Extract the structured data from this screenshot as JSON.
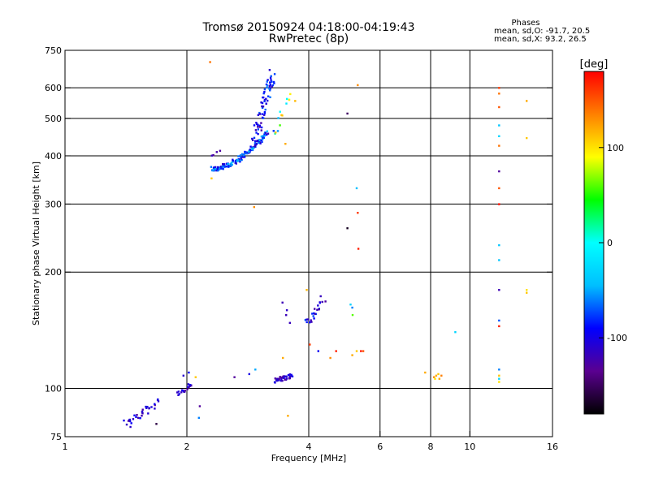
{
  "chart_data": {
    "type": "scatter",
    "title": "Tromsø 20150924 04:18:00-04:19:43",
    "subtitle": "RwPretec (8p)",
    "xlabel": "Frequency [MHz]",
    "ylabel": "Stationary phase Virtual Height [km]",
    "x_scale": "log",
    "y_scale": "log",
    "xlim": [
      1,
      16
    ],
    "ylim": [
      75,
      750
    ],
    "x_ticks": [
      1,
      2,
      4,
      6,
      8,
      10,
      16
    ],
    "y_ticks": [
      75,
      100,
      200,
      300,
      400,
      500,
      600,
      750
    ],
    "x_tick_labels": [
      "1",
      "2",
      "4",
      "6",
      "8",
      "10",
      "16"
    ],
    "y_tick_labels": [
      "75",
      "100",
      "200",
      "300",
      "400",
      "500",
      "600",
      "750"
    ],
    "grid": true,
    "stats": {
      "heading": "Phases",
      "o_line": "mean, sd,O: -91.7, 20.5",
      "x_line": "mean, sd,X:  93.2, 26.5"
    },
    "colorbar": {
      "label": "[deg]",
      "range": [
        -180,
        180
      ],
      "ticks": [
        -100,
        0,
        100
      ],
      "tick_labels": [
        "-100",
        "0",
        "100"
      ],
      "stops": [
        "#000000",
        "#5a0090",
        "#0000ff",
        "#00bfff",
        "#00ffff",
        "#00ff00",
        "#ffff00",
        "#ff8000",
        "#ff0000"
      ]
    },
    "points": [
      [
        2.28,
        700,
        140
      ],
      [
        2.93,
        295,
        130
      ],
      [
        2.3,
        350,
        110
      ],
      [
        3.5,
        430,
        120
      ],
      [
        3.55,
        85,
        120
      ],
      [
        5.28,
        610,
        130
      ],
      [
        3.7,
        555,
        115
      ],
      [
        4.98,
        515,
        -150
      ],
      [
        5.25,
        330,
        -45
      ],
      [
        5.28,
        285,
        160
      ],
      [
        5.3,
        230,
        170
      ],
      [
        4.98,
        260,
        -170
      ],
      [
        3.95,
        180,
        115
      ],
      [
        4.02,
        130,
        160
      ],
      [
        4.22,
        125,
        -95
      ],
      [
        4.52,
        120,
        130
      ],
      [
        4.67,
        125,
        170
      ],
      [
        5.12,
        122,
        120
      ],
      [
        5.25,
        125,
        110
      ],
      [
        5.38,
        125,
        175
      ],
      [
        5.45,
        125,
        150
      ],
      [
        5.13,
        155,
        60
      ],
      [
        5.07,
        165,
        -30
      ],
      [
        5.12,
        162,
        -60
      ],
      [
        3.45,
        120,
        120
      ],
      [
        2.95,
        112,
        -50
      ],
      [
        2.85,
        109,
        -100
      ],
      [
        2.62,
        107,
        -130
      ],
      [
        1.96,
        108,
        -110
      ],
      [
        2.02,
        110,
        -90
      ],
      [
        2.1,
        107,
        110
      ],
      [
        2.15,
        90,
        -130
      ],
      [
        2.14,
        84,
        -60
      ],
      [
        1.68,
        81,
        -160
      ],
      [
        9.2,
        140,
        -30
      ],
      [
        7.75,
        110,
        120
      ],
      [
        8.15,
        107,
        130
      ],
      [
        8.25,
        108,
        120
      ],
      [
        8.35,
        109,
        110
      ],
      [
        8.5,
        108,
        135
      ],
      [
        8.2,
        106,
        100
      ],
      [
        8.4,
        106,
        120
      ],
      [
        11.8,
        600,
        160
      ],
      [
        11.8,
        580,
        140
      ],
      [
        11.8,
        535,
        150
      ],
      [
        11.8,
        480,
        -40
      ],
      [
        11.8,
        450,
        -30
      ],
      [
        11.8,
        425,
        140
      ],
      [
        11.8,
        365,
        -130
      ],
      [
        11.8,
        330,
        150
      ],
      [
        11.8,
        300,
        175
      ],
      [
        11.8,
        235,
        -40
      ],
      [
        11.8,
        215,
        -40
      ],
      [
        11.8,
        180,
        -120
      ],
      [
        11.8,
        150,
        -70
      ],
      [
        11.8,
        145,
        170
      ],
      [
        11.8,
        112,
        -60
      ],
      [
        11.8,
        106,
        -30
      ],
      [
        11.8,
        104,
        100
      ],
      [
        11.8,
        108,
        110
      ],
      [
        13.8,
        555,
        120
      ],
      [
        13.8,
        445,
        110
      ],
      [
        13.8,
        180,
        100
      ],
      [
        13.8,
        177,
        110
      ]
    ],
    "clusters": [
      {
        "name": "",
        "x": [
          2.3,
          3.15
        ],
        "y": [
          370,
          460
        ],
        "n": 150,
        "phase": [
          -120,
          -40
        ],
        "spread": 0.02,
        "curve": "rising"
      },
      {
        "name": "",
        "x": [
          2.95,
          3.25
        ],
        "y": [
          430,
          650
        ],
        "n": 70,
        "phase": [
          -125,
          -60
        ],
        "spread": 0.04,
        "curve": "steep"
      },
      {
        "name": "",
        "x": [
          3.25,
          3.6
        ],
        "y": [
          450,
          580
        ],
        "n": 14,
        "phase": [
          -110,
          120
        ],
        "spread": 0.04,
        "curve": "flat"
      },
      {
        "name": "",
        "x": [
          3.3,
          3.65
        ],
        "y": [
          105,
          108
        ],
        "n": 40,
        "phase": [
          -130,
          -90
        ],
        "spread": 0.018,
        "curve": "flat"
      },
      {
        "name": "",
        "x": [
          3.95,
          4.35
        ],
        "y": [
          150,
          172
        ],
        "n": 24,
        "phase": [
          -130,
          -70
        ],
        "spread": 0.03,
        "curve": "rising"
      },
      {
        "name": "",
        "x": [
          1.4,
          1.7
        ],
        "y": [
          80,
          93
        ],
        "n": 32,
        "phase": [
          -130,
          -90
        ],
        "spread": 0.035,
        "curve": "flat"
      },
      {
        "name": "",
        "x": [
          1.9,
          2.05
        ],
        "y": [
          96,
          103
        ],
        "n": 18,
        "phase": [
          -130,
          -90
        ],
        "spread": 0.02,
        "curve": "flat"
      },
      {
        "name": "",
        "x": [
          3.45,
          3.6
        ],
        "y": [
          165,
          150
        ],
        "n": 4,
        "phase": [
          -120,
          -100
        ],
        "spread": 0.02,
        "curve": "flat"
      },
      {
        "name": "",
        "x": [
          2.3,
          2.4
        ],
        "y": [
          395,
          410
        ],
        "n": 4,
        "phase": [
          -130,
          -110
        ],
        "spread": 0.02,
        "curve": "flat"
      }
    ]
  }
}
